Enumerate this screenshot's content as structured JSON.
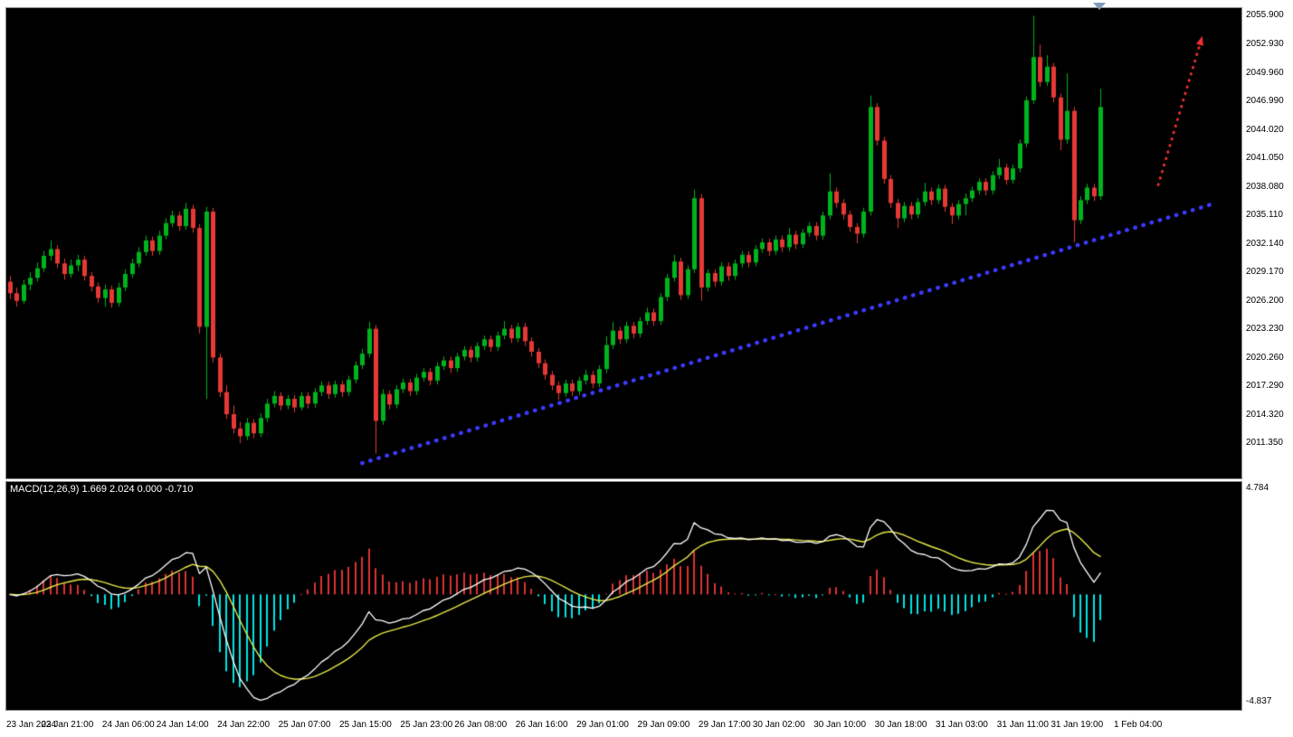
{
  "colors": {
    "panel_bg": "#000000",
    "axis_bg": "#ffffff",
    "axis_text": "#000000",
    "border": "#8a8a8a",
    "bull": "#00b31e",
    "bear": "#e53935",
    "hist_pos": "#dd3333",
    "hist_neg": "#00e5e5",
    "macd_line": "#ffffff",
    "signal_line": "#e8e848",
    "trendline": "#3b3bff",
    "arrow": "#f03030",
    "shift_marker": "#7f9db9"
  },
  "macd_panel": {
    "label": "MACD(12,26,9) 1.669 2.024 0.000 -0.710",
    "indicator_name": "MACD",
    "params": [
      12,
      26,
      9
    ],
    "displayed_values": [
      "1.669",
      "2.024",
      "0.000",
      "-0.710"
    ],
    "scale_top": "4.784",
    "scale_bottom": "-4.837"
  },
  "chart_data": [
    {
      "type": "candlestick",
      "slots": 182,
      "y_axis": {
        "min": 2007.9,
        "max": 2056.7,
        "tick_labels": [
          "2055.900",
          "2052.930",
          "2049.960",
          "2046.990",
          "2044.020",
          "2041.050",
          "2038.080",
          "2035.110",
          "2032.140",
          "2029.170",
          "2026.200",
          "2023.230",
          "2020.260",
          "2017.290",
          "2014.320",
          "2011.350"
        ]
      },
      "x_labels": [
        {
          "text": "23 Jan 2024",
          "slot": 0
        },
        {
          "text": "23 Jan 21:00",
          "slot": 9
        },
        {
          "text": "24 Jan 06:00",
          "slot": 18
        },
        {
          "text": "24 Jan 14:00",
          "slot": 26
        },
        {
          "text": "24 Jan 22:00",
          "slot": 35
        },
        {
          "text": "25 Jan 07:00",
          "slot": 44
        },
        {
          "text": "25 Jan 15:00",
          "slot": 53
        },
        {
          "text": "25 Jan 23:00",
          "slot": 62
        },
        {
          "text": "26 Jan 08:00",
          "slot": 70
        },
        {
          "text": "26 Jan 16:00",
          "slot": 79
        },
        {
          "text": "29 Jan 01:00",
          "slot": 88
        },
        {
          "text": "29 Jan 09:00",
          "slot": 97
        },
        {
          "text": "29 Jan 17:00",
          "slot": 106
        },
        {
          "text": "30 Jan 02:00",
          "slot": 114
        },
        {
          "text": "30 Jan 10:00",
          "slot": 123
        },
        {
          "text": "30 Jan 18:00",
          "slot": 132
        },
        {
          "text": "31 Jan 03:00",
          "slot": 141
        },
        {
          "text": "31 Jan 11:00",
          "slot": 150
        },
        {
          "text": "31 Jan 19:00",
          "slot": 158
        },
        {
          "text": "1 Feb 04:00",
          "slot": 167
        }
      ],
      "candles_ohlc": [
        [
          2028.2,
          2028.8,
          2026.4,
          2027.0
        ],
        [
          2027.0,
          2027.6,
          2025.6,
          2026.2
        ],
        [
          2026.2,
          2028.4,
          2025.9,
          2027.9
        ],
        [
          2027.9,
          2029.2,
          2027.3,
          2028.6
        ],
        [
          2028.6,
          2030.2,
          2028.2,
          2029.6
        ],
        [
          2029.6,
          2031.4,
          2029.2,
          2030.9
        ],
        [
          2030.9,
          2032.5,
          2030.4,
          2031.6
        ],
        [
          2031.6,
          2032.0,
          2029.6,
          2030.1
        ],
        [
          2030.1,
          2030.6,
          2028.4,
          2029.0
        ],
        [
          2029.0,
          2030.5,
          2028.6,
          2029.9
        ],
        [
          2029.9,
          2031.0,
          2029.3,
          2030.5
        ],
        [
          2030.5,
          2030.9,
          2028.3,
          2028.8
        ],
        [
          2028.8,
          2029.2,
          2027.2,
          2027.7
        ],
        [
          2027.7,
          2028.1,
          2026.0,
          2026.5
        ],
        [
          2026.5,
          2027.9,
          2025.6,
          2027.4
        ],
        [
          2027.4,
          2027.8,
          2025.5,
          2026.0
        ],
        [
          2026.0,
          2028.1,
          2025.6,
          2027.6
        ],
        [
          2027.6,
          2029.5,
          2027.2,
          2029.0
        ],
        [
          2029.0,
          2030.6,
          2028.6,
          2030.1
        ],
        [
          2030.1,
          2031.8,
          2029.7,
          2031.3
        ],
        [
          2031.3,
          2033.0,
          2030.9,
          2032.5
        ],
        [
          2032.5,
          2032.9,
          2030.9,
          2031.4
        ],
        [
          2031.4,
          2033.5,
          2031.0,
          2033.0
        ],
        [
          2033.0,
          2034.8,
          2032.6,
          2034.3
        ],
        [
          2034.3,
          2035.6,
          2033.9,
          2035.1
        ],
        [
          2035.1,
          2035.5,
          2033.5,
          2034.0
        ],
        [
          2034.0,
          2036.4,
          2033.6,
          2035.8
        ],
        [
          2035.8,
          2036.2,
          2033.3,
          2033.8
        ],
        [
          2033.8,
          2034.2,
          2022.8,
          2023.5
        ],
        [
          2023.5,
          2036.0,
          2016.0,
          2035.5
        ],
        [
          2035.5,
          2035.9,
          2019.8,
          2020.3
        ],
        [
          2020.3,
          2020.7,
          2016.2,
          2016.7
        ],
        [
          2016.7,
          2017.4,
          2013.9,
          2014.4
        ],
        [
          2014.4,
          2015.3,
          2012.4,
          2012.9
        ],
        [
          2012.9,
          2013.6,
          2011.4,
          2012.1
        ],
        [
          2012.1,
          2014.0,
          2011.7,
          2013.5
        ],
        [
          2013.5,
          2013.9,
          2011.9,
          2012.4
        ],
        [
          2012.4,
          2014.5,
          2012.0,
          2014.0
        ],
        [
          2014.0,
          2016.0,
          2013.6,
          2015.5
        ],
        [
          2015.5,
          2016.8,
          2015.1,
          2016.3
        ],
        [
          2016.3,
          2016.7,
          2014.8,
          2015.3
        ],
        [
          2015.3,
          2016.4,
          2014.9,
          2016.0
        ],
        [
          2016.0,
          2016.4,
          2014.6,
          2015.1
        ],
        [
          2015.1,
          2016.7,
          2014.8,
          2016.3
        ],
        [
          2016.3,
          2016.7,
          2015.0,
          2015.5
        ],
        [
          2015.5,
          2017.1,
          2015.1,
          2016.7
        ],
        [
          2016.7,
          2017.8,
          2016.3,
          2017.4
        ],
        [
          2017.4,
          2017.8,
          2016.0,
          2016.5
        ],
        [
          2016.5,
          2017.9,
          2016.1,
          2017.5
        ],
        [
          2017.5,
          2017.9,
          2016.2,
          2016.7
        ],
        [
          2016.7,
          2018.4,
          2016.3,
          2018.0
        ],
        [
          2018.0,
          2019.9,
          2017.6,
          2019.5
        ],
        [
          2019.5,
          2021.2,
          2019.1,
          2020.7
        ],
        [
          2020.7,
          2024.0,
          2020.3,
          2023.3
        ],
        [
          2023.3,
          2023.7,
          2010.3,
          2013.7
        ],
        [
          2013.7,
          2017.0,
          2013.3,
          2016.5
        ],
        [
          2016.5,
          2016.9,
          2014.9,
          2015.4
        ],
        [
          2015.4,
          2017.4,
          2015.0,
          2017.0
        ],
        [
          2017.0,
          2018.1,
          2016.6,
          2017.7
        ],
        [
          2017.7,
          2018.1,
          2016.3,
          2016.8
        ],
        [
          2016.8,
          2018.6,
          2016.4,
          2018.2
        ],
        [
          2018.2,
          2019.2,
          2017.8,
          2018.8
        ],
        [
          2018.8,
          2019.2,
          2017.4,
          2017.9
        ],
        [
          2017.9,
          2019.8,
          2017.5,
          2019.4
        ],
        [
          2019.4,
          2020.4,
          2019.0,
          2020.0
        ],
        [
          2020.0,
          2020.4,
          2018.7,
          2019.2
        ],
        [
          2019.2,
          2020.8,
          2018.8,
          2020.4
        ],
        [
          2020.4,
          2021.5,
          2020.0,
          2021.1
        ],
        [
          2021.1,
          2021.5,
          2019.8,
          2020.3
        ],
        [
          2020.3,
          2021.9,
          2019.9,
          2021.5
        ],
        [
          2021.5,
          2022.6,
          2021.1,
          2022.2
        ],
        [
          2022.2,
          2022.6,
          2020.9,
          2021.4
        ],
        [
          2021.4,
          2023.0,
          2021.0,
          2022.6
        ],
        [
          2022.6,
          2024.1,
          2022.2,
          2023.3
        ],
        [
          2023.3,
          2023.7,
          2021.8,
          2022.3
        ],
        [
          2022.3,
          2023.9,
          2021.9,
          2023.5
        ],
        [
          2023.5,
          2023.9,
          2021.5,
          2022.0
        ],
        [
          2022.0,
          2022.4,
          2020.4,
          2020.9
        ],
        [
          2020.9,
          2021.3,
          2019.2,
          2019.7
        ],
        [
          2019.7,
          2020.1,
          2018.0,
          2018.5
        ],
        [
          2018.5,
          2018.9,
          2016.9,
          2017.4
        ],
        [
          2017.4,
          2017.8,
          2015.9,
          2016.6
        ],
        [
          2016.6,
          2018.0,
          2016.2,
          2017.6
        ],
        [
          2017.6,
          2018.0,
          2016.3,
          2016.8
        ],
        [
          2016.8,
          2018.3,
          2016.4,
          2017.9
        ],
        [
          2017.9,
          2019.0,
          2017.5,
          2018.5
        ],
        [
          2018.5,
          2018.9,
          2017.1,
          2017.6
        ],
        [
          2017.6,
          2019.5,
          2017.2,
          2019.1
        ],
        [
          2019.1,
          2022.5,
          2018.7,
          2021.6
        ],
        [
          2021.6,
          2024.0,
          2021.2,
          2023.1
        ],
        [
          2023.1,
          2023.5,
          2021.7,
          2022.2
        ],
        [
          2022.2,
          2024.0,
          2021.8,
          2023.6
        ],
        [
          2023.6,
          2024.0,
          2022.3,
          2022.8
        ],
        [
          2022.8,
          2024.5,
          2022.4,
          2024.1
        ],
        [
          2024.1,
          2025.5,
          2023.7,
          2025.0
        ],
        [
          2025.0,
          2025.4,
          2023.6,
          2024.1
        ],
        [
          2024.1,
          2027.0,
          2023.7,
          2026.6
        ],
        [
          2026.6,
          2029.0,
          2026.2,
          2028.6
        ],
        [
          2028.6,
          2031.0,
          2028.2,
          2030.3
        ],
        [
          2030.3,
          2030.7,
          2026.3,
          2026.8
        ],
        [
          2026.8,
          2029.9,
          2026.4,
          2029.5
        ],
        [
          2029.5,
          2037.8,
          2029.1,
          2036.9
        ],
        [
          2036.9,
          2037.3,
          2026.2,
          2027.6
        ],
        [
          2027.6,
          2029.5,
          2027.2,
          2029.1
        ],
        [
          2029.1,
          2029.5,
          2027.7,
          2028.2
        ],
        [
          2028.2,
          2030.2,
          2027.8,
          2029.8
        ],
        [
          2029.8,
          2030.2,
          2028.3,
          2028.8
        ],
        [
          2028.8,
          2030.5,
          2028.4,
          2030.1
        ],
        [
          2030.1,
          2031.4,
          2029.7,
          2031.0
        ],
        [
          2031.0,
          2031.4,
          2029.7,
          2030.2
        ],
        [
          2030.2,
          2032.0,
          2029.8,
          2031.6
        ],
        [
          2031.6,
          2032.7,
          2031.2,
          2032.3
        ],
        [
          2032.3,
          2032.7,
          2030.9,
          2031.4
        ],
        [
          2031.4,
          2033.0,
          2031.0,
          2032.6
        ],
        [
          2032.6,
          2033.0,
          2031.3,
          2031.8
        ],
        [
          2031.8,
          2033.8,
          2031.4,
          2033.1
        ],
        [
          2033.1,
          2033.5,
          2031.6,
          2032.1
        ],
        [
          2032.1,
          2033.7,
          2031.7,
          2033.3
        ],
        [
          2033.3,
          2034.4,
          2032.9,
          2034.0
        ],
        [
          2034.0,
          2034.4,
          2032.5,
          2033.0
        ],
        [
          2033.0,
          2035.5,
          2032.6,
          2035.1
        ],
        [
          2035.1,
          2039.5,
          2034.7,
          2037.6
        ],
        [
          2037.6,
          2038.0,
          2035.9,
          2036.4
        ],
        [
          2036.4,
          2036.8,
          2034.7,
          2035.2
        ],
        [
          2035.2,
          2035.6,
          2033.4,
          2033.9
        ],
        [
          2033.9,
          2034.3,
          2032.2,
          2033.2
        ],
        [
          2033.2,
          2035.9,
          2032.8,
          2035.5
        ],
        [
          2035.5,
          2047.6,
          2035.1,
          2046.4
        ],
        [
          2046.4,
          2046.8,
          2042.4,
          2042.9
        ],
        [
          2042.9,
          2043.3,
          2038.4,
          2038.9
        ],
        [
          2038.9,
          2039.3,
          2035.9,
          2036.4
        ],
        [
          2036.4,
          2036.8,
          2033.8,
          2034.8
        ],
        [
          2034.8,
          2036.5,
          2034.4,
          2036.1
        ],
        [
          2036.1,
          2036.5,
          2034.7,
          2035.2
        ],
        [
          2035.2,
          2036.9,
          2034.8,
          2036.5
        ],
        [
          2036.5,
          2038.5,
          2036.1,
          2037.6
        ],
        [
          2037.6,
          2038.0,
          2036.2,
          2036.7
        ],
        [
          2036.7,
          2038.3,
          2036.3,
          2037.9
        ],
        [
          2037.9,
          2038.3,
          2035.5,
          2036.0
        ],
        [
          2036.0,
          2036.4,
          2034.2,
          2035.1
        ],
        [
          2035.1,
          2036.7,
          2034.7,
          2036.3
        ],
        [
          2036.3,
          2037.4,
          2035.1,
          2036.9
        ],
        [
          2036.9,
          2038.1,
          2036.5,
          2037.7
        ],
        [
          2037.7,
          2039.0,
          2037.3,
          2038.6
        ],
        [
          2038.6,
          2039.0,
          2037.2,
          2037.7
        ],
        [
          2037.7,
          2039.7,
          2037.3,
          2039.3
        ],
        [
          2039.3,
          2041.0,
          2038.9,
          2040.1
        ],
        [
          2040.1,
          2040.5,
          2038.3,
          2038.8
        ],
        [
          2038.8,
          2040.4,
          2038.4,
          2040.0
        ],
        [
          2040.0,
          2043.0,
          2039.6,
          2042.6
        ],
        [
          2042.6,
          2047.5,
          2042.2,
          2047.1
        ],
        [
          2047.1,
          2055.9,
          2046.7,
          2051.6
        ],
        [
          2051.6,
          2052.9,
          2048.5,
          2049.0
        ],
        [
          2049.0,
          2051.8,
          2048.6,
          2050.6
        ],
        [
          2050.6,
          2051.0,
          2046.9,
          2047.4
        ],
        [
          2047.4,
          2047.8,
          2041.9,
          2043.0
        ],
        [
          2043.0,
          2049.9,
          2042.6,
          2046.0
        ],
        [
          2046.0,
          2046.4,
          2032.3,
          2034.6
        ],
        [
          2034.6,
          2037.1,
          2034.2,
          2036.7
        ],
        [
          2036.7,
          2038.4,
          2036.3,
          2038.0
        ],
        [
          2038.0,
          2038.4,
          2036.6,
          2037.1
        ],
        [
          2037.1,
          2048.3,
          2036.7,
          2046.4
        ]
      ],
      "annotations": {
        "trendline": {
          "style": "dotted",
          "x1_slot": 52.5,
          "price1": 2009.3,
          "x2_slot": 178.5,
          "price2": 2036.4
        },
        "arrow": {
          "style": "dotted",
          "x1_slot": 170.0,
          "price1": 2038.3,
          "x2_slot": 176.5,
          "price2": 2053.8
        }
      }
    },
    {
      "type": "macd",
      "label": "MACD(12,26,9) 1.669 2.024 0.000 -0.710",
      "params": [
        12,
        26,
        9
      ],
      "y_axis": {
        "min": -4.837,
        "max": 4.784,
        "tick_labels": [
          "4.784",
          "-4.837"
        ]
      }
    }
  ]
}
